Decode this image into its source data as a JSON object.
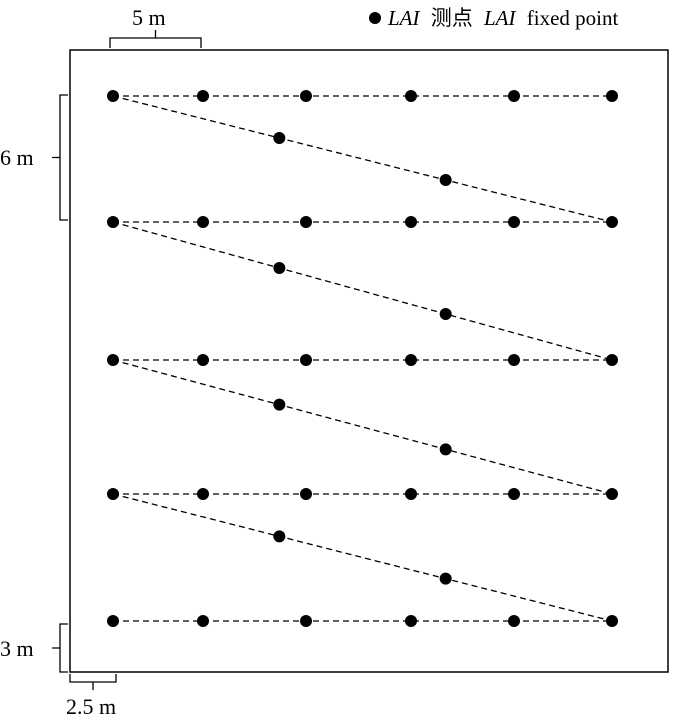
{
  "legend": {
    "marker": "●",
    "term_italic_1": "LAI",
    "term_chinese": "测点",
    "term_italic_2": "LAI",
    "term_english": "fixed point"
  },
  "dimensions": {
    "top_spacing": "5 m",
    "left_spacing": "6 m",
    "bottom_offset_vertical": "3 m",
    "bottom_offset_horizontal": "2.5 m"
  },
  "colors": {
    "ink": "#000000",
    "background": "#ffffff"
  },
  "rows": [
    {
      "straight_points": 6,
      "diagonal_points_to_next": 2
    },
    {
      "straight_points": 6,
      "diagonal_points_to_next": 2
    },
    {
      "straight_points": 6,
      "diagonal_points_to_next": 2
    },
    {
      "straight_points": 6,
      "diagonal_points_to_next": 2
    },
    {
      "straight_points": 6,
      "diagonal_points_to_next": 0
    }
  ]
}
